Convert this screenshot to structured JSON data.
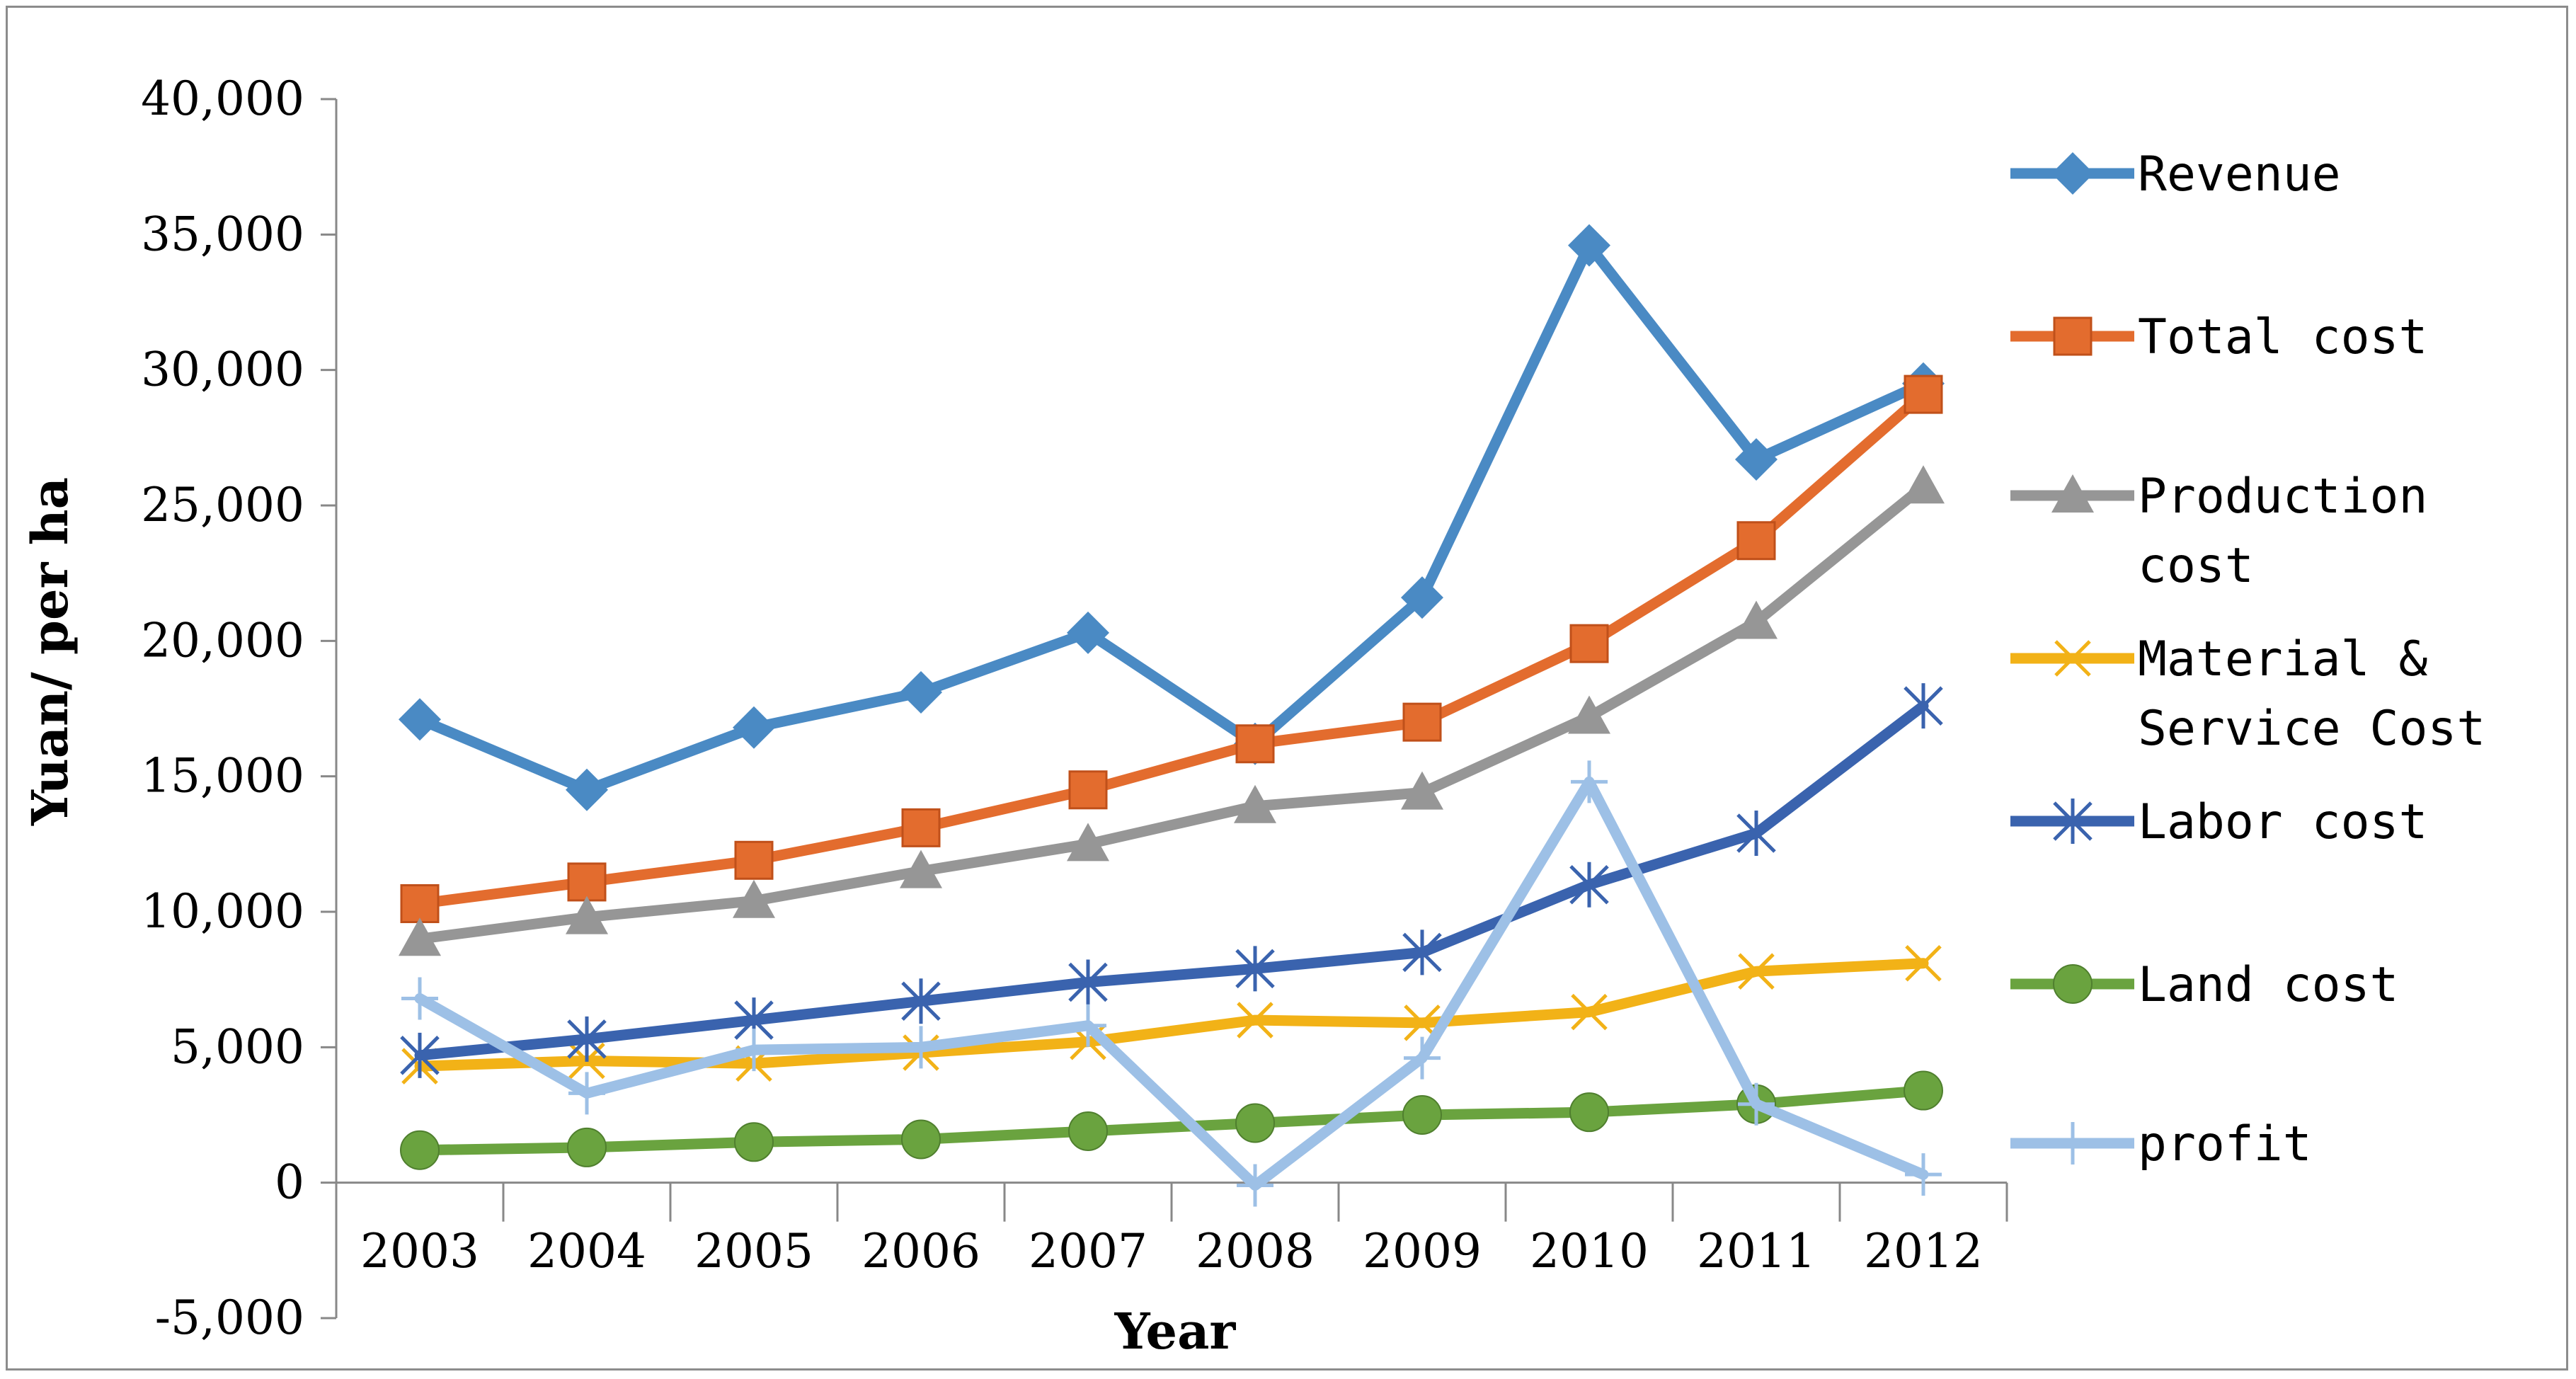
{
  "chart_data": {
    "type": "line",
    "title": "",
    "xlabel": "Year",
    "ylabel": "Yuan/ per ha",
    "ylim": [
      -5000,
      40000
    ],
    "yticks": [
      -5000,
      0,
      5000,
      10000,
      15000,
      20000,
      25000,
      30000,
      35000,
      40000
    ],
    "ytick_labels": [
      "-5,000",
      "0",
      "5,000",
      "10,000",
      "15,000",
      "20,000",
      "25,000",
      "30,000",
      "35,000",
      "40,000"
    ],
    "categories": [
      "2003",
      "2004",
      "2005",
      "2006",
      "2007",
      "2008",
      "2009",
      "2010",
      "2011",
      "2012"
    ],
    "legend_position": "right",
    "grid": false,
    "series": [
      {
        "name": "Revenue",
        "legend_lines": [
          "Revenue"
        ],
        "color": "#4A8AC4",
        "marker": "diamond",
        "values": [
          17100,
          14500,
          16800,
          18100,
          20300,
          16200,
          21600,
          34600,
          26700,
          29500
        ]
      },
      {
        "name": "Total cost",
        "legend_lines": [
          "Total cost"
        ],
        "color": "#E36C2E",
        "marker": "square",
        "values": [
          10300,
          11100,
          11900,
          13100,
          14500,
          16200,
          17000,
          19900,
          23700,
          29100
        ]
      },
      {
        "name": "Production cost",
        "legend_lines": [
          "Production",
          "cost"
        ],
        "color": "#969696",
        "marker": "triangle",
        "values": [
          9000,
          9800,
          10400,
          11500,
          12500,
          13900,
          14400,
          17200,
          20700,
          25700
        ]
      },
      {
        "name": "Material & Service Cost",
        "legend_lines": [
          "Material &",
          "Service Cost"
        ],
        "color": "#F2B217",
        "marker": "x",
        "values": [
          4300,
          4500,
          4400,
          4800,
          5200,
          6000,
          5900,
          6300,
          7800,
          8100
        ]
      },
      {
        "name": "Labor cost",
        "legend_lines": [
          "Labor cost"
        ],
        "color": "#3A63AE",
        "marker": "star",
        "values": [
          4700,
          5300,
          6000,
          6700,
          7400,
          7900,
          8500,
          11000,
          12900,
          17600
        ]
      },
      {
        "name": "Land cost",
        "legend_lines": [
          "Land cost"
        ],
        "color": "#6AA33F",
        "marker": "circle",
        "values": [
          1200,
          1300,
          1500,
          1600,
          1900,
          2200,
          2500,
          2600,
          2900,
          3400
        ]
      },
      {
        "name": "profit",
        "legend_lines": [
          "profit"
        ],
        "color": "#9DC0E6",
        "marker": "plus",
        "values": [
          6800,
          3300,
          4900,
          5000,
          5800,
          -100,
          4600,
          14800,
          2900,
          300
        ]
      }
    ]
  }
}
